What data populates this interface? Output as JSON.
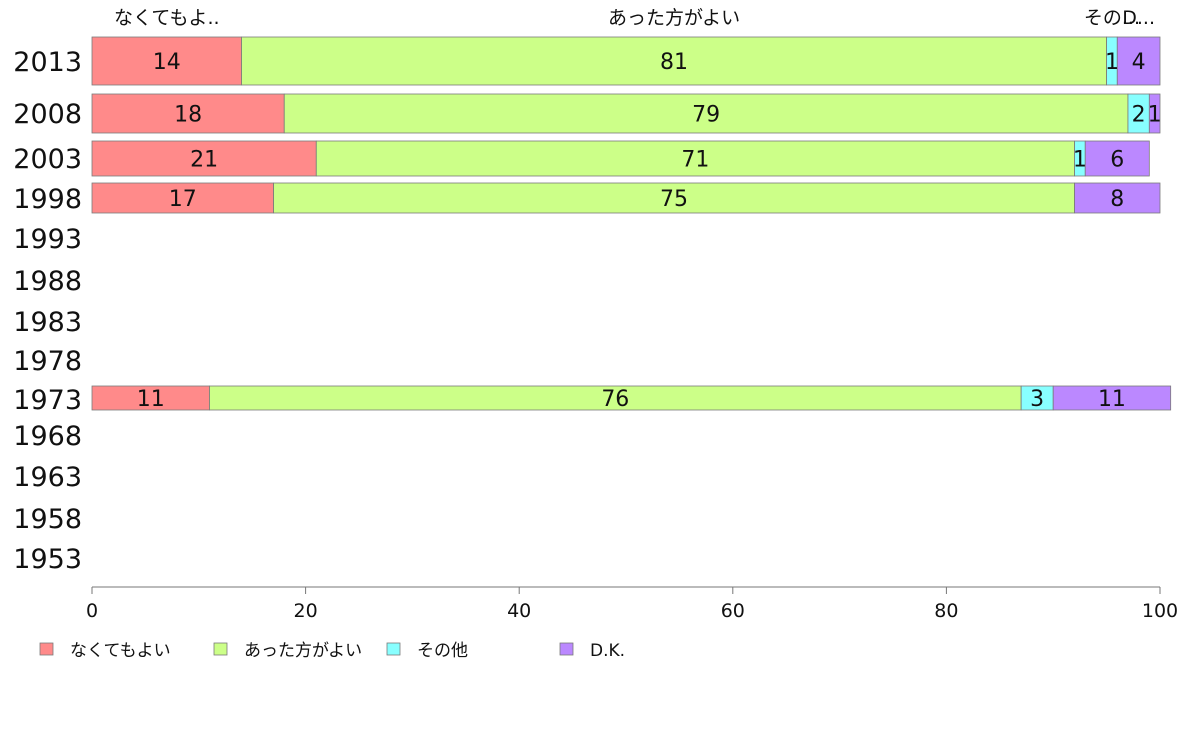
{
  "chart_data": {
    "type": "bar",
    "orientation": "horizontal",
    "stacked": true,
    "percent": true,
    "categories": [
      "2013",
      "2008",
      "2003",
      "1998",
      "1993",
      "1988",
      "1983",
      "1978",
      "1973",
      "1968",
      "1963",
      "1958",
      "1953"
    ],
    "series": [
      {
        "name": "なくてもよい",
        "color": "#ff8a8a",
        "values": [
          14,
          18,
          21,
          17,
          null,
          null,
          null,
          null,
          11,
          null,
          null,
          null,
          null
        ],
        "labels": [
          "14",
          "18",
          "21",
          "17",
          "",
          "",
          "",
          "",
          "11",
          "",
          "",
          "",
          ""
        ]
      },
      {
        "name": "あった方がよい",
        "color": "#ccff88",
        "values": [
          81,
          79,
          71,
          75,
          null,
          null,
          null,
          null,
          76,
          null,
          null,
          null,
          null
        ],
        "labels": [
          "81",
          "79",
          "71",
          "75",
          "",
          "",
          "",
          "",
          "76",
          "",
          "",
          "",
          ""
        ]
      },
      {
        "name": "その他",
        "color": "#88ffff",
        "values": [
          1,
          2,
          1,
          0,
          null,
          null,
          null,
          null,
          3,
          null,
          null,
          null,
          null
        ],
        "labels": [
          "1",
          "2",
          "1",
          "",
          "",
          "",
          "",
          "",
          "3",
          "",
          "",
          "",
          ""
        ]
      },
      {
        "name": "D.K.",
        "color": "#bb88ff",
        "values": [
          4,
          1,
          6,
          8,
          null,
          null,
          null,
          null,
          11,
          null,
          null,
          null,
          null
        ],
        "labels": [
          "4",
          "1",
          "6",
          "8",
          "",
          "",
          "",
          "",
          "11",
          "",
          "",
          "",
          ""
        ]
      }
    ],
    "top_labels": [
      "なくてもよ..",
      "あった方がよい",
      "その...",
      "D..."
    ],
    "xlim": [
      0,
      100
    ],
    "xticks": [
      "0",
      "20",
      "40",
      "60",
      "80",
      "100"
    ],
    "grid": false,
    "legend": "bottom-left"
  }
}
